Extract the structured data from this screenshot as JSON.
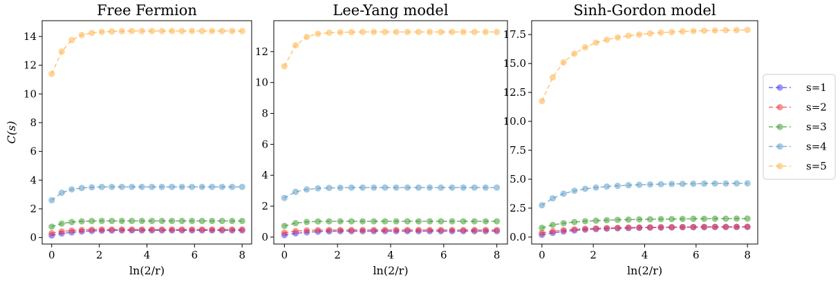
{
  "chart_data": [
    {
      "type": "line",
      "title": "Free Fermion",
      "xlabel": "ln(2/r)",
      "ylabel": "C(s)",
      "xlim": [
        -0.4,
        8.4
      ],
      "ylim": [
        -0.45,
        15.1
      ],
      "xticks": [
        0,
        2,
        4,
        6,
        8
      ],
      "xtick_labels": [
        "0",
        "2",
        "4",
        "6",
        "8"
      ],
      "yticks": [
        0,
        2,
        4,
        6,
        8,
        10,
        12,
        14
      ],
      "ytick_labels": [
        "0",
        "2",
        "4",
        "6",
        "8",
        "10",
        "12",
        "14"
      ],
      "x": [
        0,
        0.421,
        0.842,
        1.263,
        1.684,
        2.105,
        2.526,
        2.947,
        3.368,
        3.789,
        4.211,
        4.632,
        5.053,
        5.474,
        5.895,
        6.316,
        6.737,
        7.158,
        7.579,
        8.0
      ],
      "series": [
        {
          "name": "s=1",
          "values": [
            0.15,
            0.28,
            0.36,
            0.42,
            0.46,
            0.48,
            0.49,
            0.5,
            0.5,
            0.5,
            0.5,
            0.5,
            0.5,
            0.5,
            0.5,
            0.5,
            0.5,
            0.5,
            0.5,
            0.5
          ]
        },
        {
          "name": "s=2",
          "values": [
            0.3,
            0.42,
            0.49,
            0.53,
            0.55,
            0.56,
            0.56,
            0.56,
            0.56,
            0.56,
            0.56,
            0.56,
            0.56,
            0.56,
            0.56,
            0.56,
            0.56,
            0.56,
            0.56,
            0.56
          ]
        },
        {
          "name": "s=3",
          "values": [
            0.76,
            0.97,
            1.08,
            1.13,
            1.15,
            1.16,
            1.16,
            1.16,
            1.16,
            1.16,
            1.16,
            1.16,
            1.16,
            1.16,
            1.16,
            1.16,
            1.16,
            1.16,
            1.16,
            1.16
          ]
        },
        {
          "name": "s=4",
          "values": [
            2.6,
            3.12,
            3.35,
            3.45,
            3.5,
            3.52,
            3.53,
            3.53,
            3.53,
            3.53,
            3.53,
            3.53,
            3.53,
            3.53,
            3.53,
            3.53,
            3.53,
            3.53,
            3.53,
            3.53
          ]
        },
        {
          "name": "s=5",
          "values": [
            11.4,
            12.95,
            13.75,
            14.1,
            14.25,
            14.32,
            14.35,
            14.37,
            14.38,
            14.38,
            14.38,
            14.38,
            14.38,
            14.38,
            14.38,
            14.38,
            14.38,
            14.38,
            14.38,
            14.38
          ]
        }
      ]
    },
    {
      "type": "line",
      "title": "Lee-Yang model",
      "xlabel": "ln(2/r)",
      "ylabel": "",
      "xlim": [
        -0.4,
        8.4
      ],
      "ylim": [
        -0.45,
        14.0
      ],
      "xticks": [
        0,
        2,
        4,
        6,
        8
      ],
      "xtick_labels": [
        "0",
        "2",
        "4",
        "6",
        "8"
      ],
      "yticks": [
        0,
        2,
        4,
        6,
        8,
        10,
        12
      ],
      "ytick_labels": [
        "0",
        "2",
        "4",
        "6",
        "8",
        "10",
        "12"
      ],
      "x": [
        0,
        0.421,
        0.842,
        1.263,
        1.684,
        2.105,
        2.526,
        2.947,
        3.368,
        3.789,
        4.211,
        4.632,
        5.053,
        5.474,
        5.895,
        6.316,
        6.737,
        7.158,
        7.579,
        8.0
      ],
      "series": [
        {
          "name": "s=1",
          "values": [
            0.13,
            0.24,
            0.31,
            0.35,
            0.37,
            0.38,
            0.38,
            0.38,
            0.38,
            0.38,
            0.38,
            0.38,
            0.38,
            0.38,
            0.38,
            0.38,
            0.38,
            0.38,
            0.38,
            0.38
          ]
        },
        {
          "name": "s=2",
          "values": [
            0.28,
            0.38,
            0.43,
            0.45,
            0.46,
            0.46,
            0.46,
            0.46,
            0.46,
            0.46,
            0.46,
            0.46,
            0.46,
            0.46,
            0.46,
            0.46,
            0.46,
            0.46,
            0.46,
            0.46
          ]
        },
        {
          "name": "s=3",
          "values": [
            0.72,
            0.9,
            0.98,
            1.01,
            1.02,
            1.02,
            1.02,
            1.02,
            1.02,
            1.02,
            1.02,
            1.02,
            1.02,
            1.02,
            1.02,
            1.02,
            1.02,
            1.02,
            1.02,
            1.02
          ]
        },
        {
          "name": "s=4",
          "values": [
            2.53,
            2.93,
            3.08,
            3.15,
            3.18,
            3.19,
            3.2,
            3.2,
            3.2,
            3.2,
            3.2,
            3.2,
            3.2,
            3.2,
            3.2,
            3.2,
            3.2,
            3.2,
            3.2,
            3.2
          ]
        },
        {
          "name": "s=5",
          "values": [
            11.05,
            12.4,
            12.95,
            13.15,
            13.22,
            13.25,
            13.26,
            13.27,
            13.27,
            13.27,
            13.27,
            13.27,
            13.27,
            13.27,
            13.27,
            13.27,
            13.27,
            13.27,
            13.27,
            13.27
          ]
        }
      ]
    },
    {
      "type": "line",
      "title": "Sinh-Gordon model",
      "xlabel": "ln(2/r)",
      "ylabel": "",
      "xlim": [
        -0.4,
        8.4
      ],
      "ylim": [
        -0.6,
        18.7
      ],
      "xticks": [
        0,
        2,
        4,
        6,
        8
      ],
      "xtick_labels": [
        "0",
        "2",
        "4",
        "6",
        "8"
      ],
      "yticks": [
        0,
        2.5,
        5,
        7.5,
        10,
        12.5,
        15,
        17.5
      ],
      "ytick_labels": [
        "0.0",
        "2.5",
        "5.0",
        "7.5",
        "10.0",
        "12.5",
        "15.0",
        "17.5"
      ],
      "x": [
        0,
        0.421,
        0.842,
        1.263,
        1.684,
        2.105,
        2.526,
        2.947,
        3.368,
        3.789,
        4.211,
        4.632,
        5.053,
        5.474,
        5.895,
        6.316,
        6.737,
        7.158,
        7.579,
        8.0
      ],
      "series": [
        {
          "name": "s=1",
          "values": [
            0.2,
            0.36,
            0.48,
            0.57,
            0.64,
            0.69,
            0.73,
            0.76,
            0.78,
            0.8,
            0.82,
            0.83,
            0.84,
            0.85,
            0.86,
            0.86,
            0.87,
            0.87,
            0.87,
            0.88
          ]
        },
        {
          "name": "s=2",
          "values": [
            0.35,
            0.5,
            0.6,
            0.67,
            0.72,
            0.75,
            0.78,
            0.8,
            0.82,
            0.83,
            0.84,
            0.85,
            0.86,
            0.87,
            0.87,
            0.88,
            0.88,
            0.88,
            0.89,
            0.89
          ]
        },
        {
          "name": "s=3",
          "values": [
            0.8,
            1.05,
            1.2,
            1.3,
            1.37,
            1.42,
            1.46,
            1.49,
            1.51,
            1.53,
            1.54,
            1.55,
            1.56,
            1.57,
            1.58,
            1.58,
            1.59,
            1.59,
            1.6,
            1.6
          ]
        },
        {
          "name": "s=4",
          "values": [
            2.75,
            3.35,
            3.75,
            4.0,
            4.17,
            4.28,
            4.37,
            4.43,
            4.48,
            4.52,
            4.55,
            4.57,
            4.59,
            4.6,
            4.61,
            4.62,
            4.63,
            4.63,
            4.64,
            4.64
          ]
        },
        {
          "name": "s=5",
          "values": [
            11.75,
            13.8,
            15.1,
            15.85,
            16.4,
            16.8,
            17.05,
            17.25,
            17.4,
            17.5,
            17.6,
            17.67,
            17.72,
            17.77,
            17.8,
            17.83,
            17.85,
            17.87,
            17.88,
            17.9
          ]
        }
      ]
    }
  ],
  "legend": {
    "placement": "right",
    "entries": [
      {
        "label": "s=1",
        "color": "#4b3bf5"
      },
      {
        "label": "s=2",
        "color": "#f03a3a"
      },
      {
        "label": "s=3",
        "color": "#3c9a2e"
      },
      {
        "label": "s=4",
        "color": "#5a9ac8"
      },
      {
        "label": "s=5",
        "color": "#ffb347"
      }
    ]
  },
  "colors": {
    "s=1": "#4b3bf5",
    "s=2": "#f03a3a",
    "s=3": "#3c9a2e",
    "s=4": "#5a9ac8",
    "s=5": "#ffb347"
  }
}
